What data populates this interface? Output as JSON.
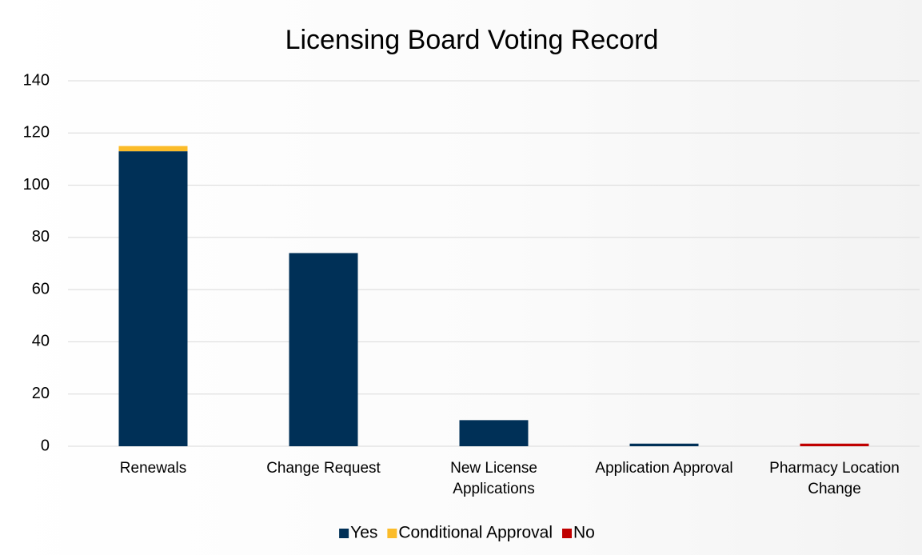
{
  "chart_data": {
    "type": "stacked-bar",
    "title": "Licensing Board Voting Record",
    "categories": [
      "Renewals",
      "Change Request",
      "New License Applications",
      "Application Approval",
      "Pharmacy Location Change"
    ],
    "series": [
      {
        "name": "Yes",
        "color": "#003057",
        "values": [
          113,
          74,
          10,
          1,
          0
        ]
      },
      {
        "name": "Conditional Approval",
        "color": "#fbbc2a",
        "values": [
          2,
          0,
          0,
          0,
          0
        ]
      },
      {
        "name": "No",
        "color": "#c00000",
        "values": [
          0,
          0,
          0,
          0,
          1
        ]
      }
    ],
    "ylim": [
      0,
      140
    ],
    "yticks": [
      0,
      20,
      40,
      60,
      80,
      100,
      120,
      140
    ],
    "grid": true,
    "legend": "bottom"
  }
}
